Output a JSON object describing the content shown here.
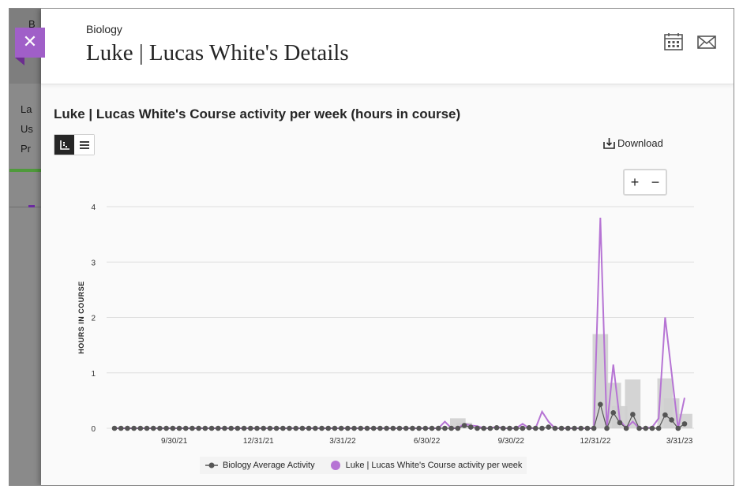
{
  "background_page": {
    "rows": [
      "La",
      "Us",
      "Pr"
    ],
    "top_letter": "B"
  },
  "header": {
    "course": "Biology",
    "title": "Luke | Lucas White's Details",
    "icons": [
      "calendar-icon",
      "envelope-icon"
    ]
  },
  "controls": {
    "download_label": "Download",
    "zoom_in": "+",
    "zoom_out": "−"
  },
  "chart_data": {
    "type": "line",
    "title": "Luke | Lucas White's Course activity per week (hours in course)",
    "ylabel": "HOURS IN COURSE",
    "ylim": [
      0,
      4
    ],
    "yticks": [
      "0",
      "1",
      "2",
      "3",
      "4"
    ],
    "xticks": [
      "9/30/21",
      "12/31/21",
      "3/31/22",
      "6/30/22",
      "9/30/22",
      "12/31/22",
      "3/31/23"
    ],
    "legend_position": "bottom",
    "colors": {
      "average": "#555555",
      "student": "#b674d4",
      "bars": "#cfcfcf"
    },
    "series": [
      {
        "name": "Biology Average Activity",
        "values": [
          0,
          0,
          0,
          0,
          0,
          0,
          0,
          0,
          0,
          0,
          0,
          0,
          0,
          0,
          0,
          0,
          0,
          0,
          0,
          0,
          0,
          0,
          0,
          0,
          0,
          0,
          0,
          0,
          0,
          0,
          0,
          0,
          0,
          0,
          0,
          0,
          0,
          0,
          0,
          0,
          0,
          0,
          0,
          0,
          0,
          0,
          0,
          0,
          0,
          0,
          0,
          0,
          0,
          0,
          0.05,
          0.02,
          0,
          0,
          0,
          0.01,
          0,
          0,
          0,
          0,
          0.01,
          0,
          0,
          0.02,
          0,
          0,
          0,
          0,
          0,
          0,
          0,
          0.43,
          0,
          0.28,
          0.1,
          0,
          0.25,
          0,
          0,
          0,
          0,
          0.24,
          0.15,
          0,
          0.08
        ]
      },
      {
        "name": "Luke | Lucas White's Course activity per week",
        "values": [
          0,
          0,
          0,
          0,
          0,
          0,
          0,
          0,
          0,
          0,
          0,
          0,
          0,
          0,
          0,
          0,
          0,
          0,
          0,
          0,
          0,
          0,
          0,
          0,
          0,
          0,
          0,
          0,
          0,
          0,
          0,
          0,
          0,
          0,
          0,
          0,
          0,
          0,
          0,
          0,
          0,
          0,
          0,
          0,
          0,
          0,
          0,
          0,
          0,
          0,
          0,
          0.12,
          0,
          0,
          0.08,
          0.05,
          0.04,
          0,
          0,
          0.03,
          0,
          0,
          0,
          0.08,
          0,
          0,
          0.3,
          0.12,
          0,
          0,
          0,
          0,
          0,
          0,
          0,
          3.8,
          0,
          1.15,
          0.15,
          0,
          0.12,
          0,
          0,
          0.02,
          0.18,
          2.0,
          1.0,
          0,
          0.55
        ]
      },
      {
        "name": "bars",
        "values": [
          0,
          0,
          0,
          0,
          0,
          0,
          0,
          0,
          0,
          0,
          0,
          0,
          0,
          0,
          0,
          0,
          0,
          0,
          0,
          0,
          0,
          0,
          0,
          0,
          0,
          0,
          0,
          0,
          0,
          0,
          0,
          0,
          0,
          0,
          0,
          0,
          0,
          0,
          0,
          0,
          0,
          0,
          0,
          0,
          0,
          0,
          0,
          0,
          0,
          0,
          0,
          0,
          0,
          0.18,
          0.1,
          0,
          0,
          0,
          0,
          0,
          0,
          0,
          0,
          0,
          0,
          0,
          0,
          0,
          0,
          0,
          0,
          0,
          0,
          0,
          0,
          1.7,
          0,
          0.82,
          0.4,
          0,
          0.88,
          0,
          0,
          0,
          0,
          0.9,
          0.54,
          0,
          0.26
        ]
      }
    ]
  }
}
